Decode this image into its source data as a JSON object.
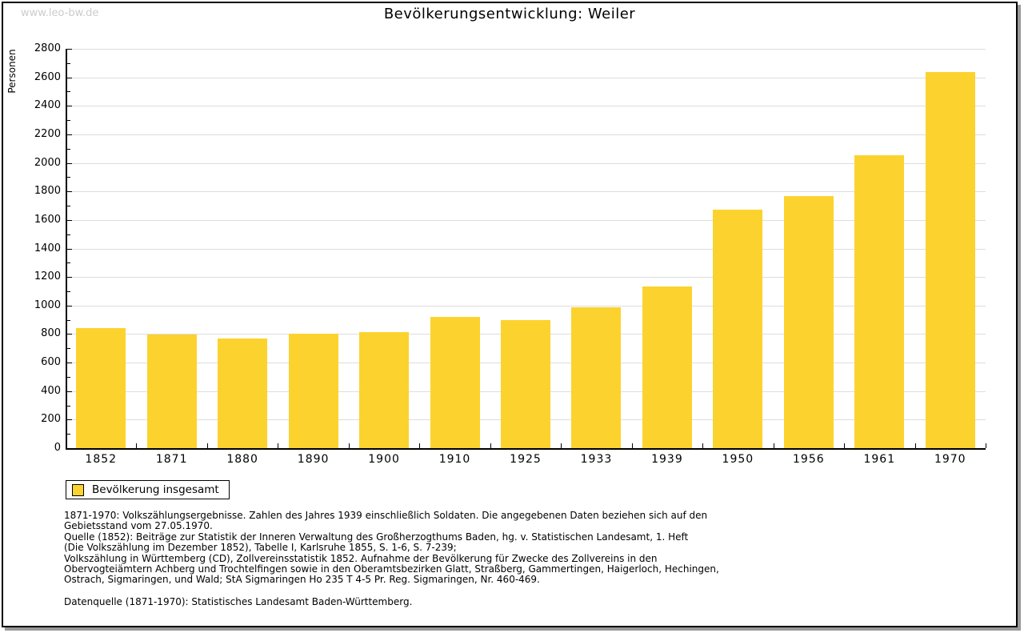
{
  "watermark": "www.leo-bw.de",
  "title": "Bevölkerungsentwicklung: Weiler",
  "chart_data": {
    "type": "bar",
    "title": "Bevölkerungsentwicklung: Weiler",
    "xlabel": "",
    "ylabel": "Personen",
    "categories": [
      "1852",
      "1871",
      "1880",
      "1890",
      "1900",
      "1910",
      "1925",
      "1933",
      "1939",
      "1950",
      "1956",
      "1961",
      "1970"
    ],
    "values": [
      840,
      795,
      770,
      800,
      815,
      920,
      895,
      985,
      1135,
      1670,
      1770,
      2055,
      2640
    ],
    "ylim": [
      0,
      2800
    ],
    "ytick_step": 200,
    "ytick_minor_step": 100,
    "grid": true,
    "bar_color": "#FCD32E",
    "gridline_color": "#dddddd",
    "legend": {
      "label": "Bevölkerung insgesamt",
      "position": "below-left"
    }
  },
  "footnotes": [
    "1871-1970: Volkszählungsergebnisse. Zahlen des Jahres 1939 einschließlich Soldaten. Die angegebenen Daten beziehen sich auf den",
    "Gebietsstand vom 27.05.1970.",
    "Quelle (1852): Beiträge zur Statistik der Inneren Verwaltung des Großherzogthums Baden, hg. v. Statistischen Landesamt, 1. Heft",
    "(Die Volkszählung im Dezember 1852), Tabelle I, Karlsruhe 1855, S. 1-6, S. 7-239;",
    "Volkszählung in Württemberg (CD), Zollvereinsstatistik 1852. Aufnahme der Bevölkerung für Zwecke des Zollvereins in den",
    "Obervogteiämtern Achberg und Trochtelfingen sowie in den Oberamtsbezirken Glatt, Straßberg, Gammertingen, Haigerloch, Hechingen,",
    "Ostrach, Sigmaringen, und Wald; StA Sigmaringen Ho 235 T 4-5 Pr. Reg. Sigmaringen, Nr. 460-469."
  ],
  "datasource": "Datenquelle (1871-1970): Statistisches Landesamt Baden-Württemberg."
}
